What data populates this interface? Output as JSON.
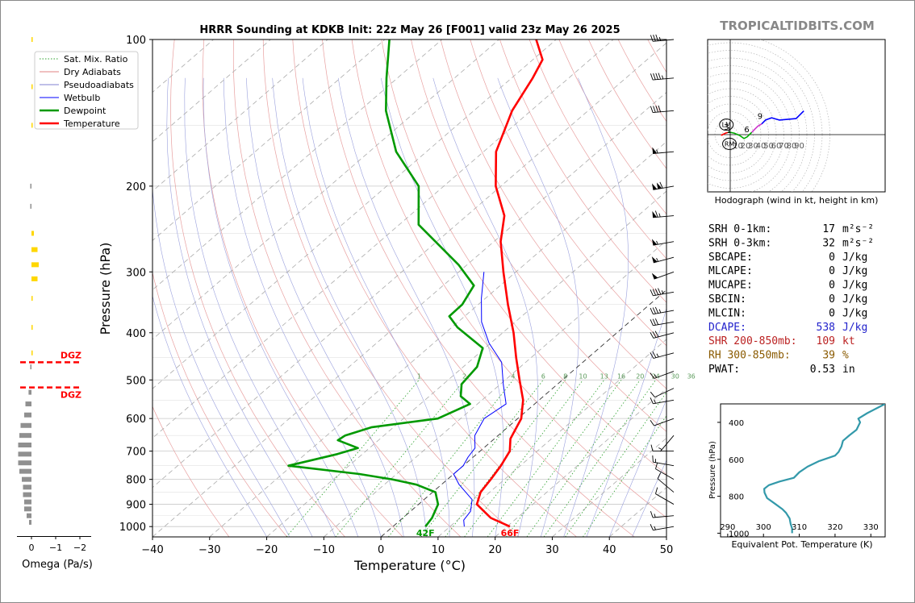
{
  "chart_data": {
    "type": "line",
    "title": "HRRR Sounding at KDKB Init: 22z May 26 [F001] valid 23z May 26 2025",
    "xlabel": "Temperature (°C)",
    "ylabel": "Pressure (hPa)",
    "x_ticks": [
      "−40",
      "−30",
      "−20",
      "−10",
      "0",
      "10",
      "20",
      "30",
      "40",
      "50"
    ],
    "y_ticks": [
      "100",
      "200",
      "300",
      "400",
      "500",
      "600",
      "700",
      "800",
      "900",
      "1000"
    ],
    "xlim": [
      -40,
      50
    ],
    "ylim": [
      1050,
      100
    ],
    "log_y": true,
    "legend": {
      "position": "top-left",
      "entries": [
        {
          "label": "Sat. Mix. Ratio",
          "color": "#2ca02c",
          "style": "dotted"
        },
        {
          "label": "Dry Adiabats",
          "color": "#e08080",
          "style": "solid"
        },
        {
          "label": "Pseudoadiabats",
          "color": "#8080d0",
          "style": "solid"
        },
        {
          "label": "Wetbulb",
          "color": "#0000ff",
          "style": "solid"
        },
        {
          "label": "Dewpoint",
          "color": "#009900",
          "style": "solid"
        },
        {
          "label": "Temperature",
          "color": "#ff0000",
          "style": "solid"
        }
      ]
    },
    "series": [
      {
        "name": "Temperature",
        "color": "#ff0000",
        "points": [
          [
            1000,
            20.5
          ],
          [
            960,
            15.4
          ],
          [
            900,
            10.2
          ],
          [
            850,
            8.4
          ],
          [
            800,
            7.6
          ],
          [
            750,
            6.6
          ],
          [
            700,
            5.2
          ],
          [
            660,
            2.8
          ],
          [
            600,
            0.6
          ],
          [
            550,
            -2.8
          ],
          [
            500,
            -7.5
          ],
          [
            450,
            -12.6
          ],
          [
            400,
            -18.1
          ],
          [
            350,
            -24.8
          ],
          [
            300,
            -32.2
          ],
          [
            260,
            -38.8
          ],
          [
            230,
            -43.4
          ],
          [
            200,
            -50.9
          ],
          [
            170,
            -57.8
          ],
          [
            140,
            -63.3
          ],
          [
            120,
            -66.3
          ],
          [
            110,
            -68.3
          ],
          [
            100,
            -73.5
          ]
        ]
      },
      {
        "name": "Dewpoint",
        "color": "#009900",
        "points": [
          [
            1000,
            5.7
          ],
          [
            960,
            5.1
          ],
          [
            900,
            3.4
          ],
          [
            850,
            0.5
          ],
          [
            820,
            -4.4
          ],
          [
            800,
            -9.7
          ],
          [
            780,
            -16.5
          ],
          [
            750,
            -30.6
          ],
          [
            710,
            -24.4
          ],
          [
            690,
            -22.0
          ],
          [
            665,
            -27.1
          ],
          [
            650,
            -26.8
          ],
          [
            625,
            -23.8
          ],
          [
            600,
            -14.0
          ],
          [
            560,
            -11.3
          ],
          [
            540,
            -14.5
          ],
          [
            510,
            -16.8
          ],
          [
            470,
            -17.6
          ],
          [
            430,
            -20.4
          ],
          [
            390,
            -29.0
          ],
          [
            370,
            -32.7
          ],
          [
            350,
            -32.8
          ],
          [
            320,
            -34.6
          ],
          [
            290,
            -41.5
          ],
          [
            240,
            -56.6
          ],
          [
            200,
            -64.4
          ],
          [
            170,
            -75.3
          ],
          [
            140,
            -85.4
          ],
          [
            120,
            -91.9
          ],
          [
            100,
            -99.2
          ]
        ]
      },
      {
        "name": "Wetbulb",
        "color": "#0000ff",
        "points": [
          [
            1000,
            12.5
          ],
          [
            970,
            11.1
          ],
          [
            930,
            10.5
          ],
          [
            880,
            8.4
          ],
          [
            820,
            3.1
          ],
          [
            780,
            0.0
          ],
          [
            750,
            0.0
          ],
          [
            720,
            -0.9
          ],
          [
            690,
            -1.5
          ],
          [
            650,
            -4.1
          ],
          [
            600,
            -5.9
          ],
          [
            560,
            -5.0
          ],
          [
            510,
            -9.5
          ],
          [
            460,
            -14.2
          ],
          [
            420,
            -20.3
          ],
          [
            380,
            -25.9
          ],
          [
            340,
            -30.7
          ],
          [
            300,
            -35.6
          ]
        ]
      }
    ],
    "surface_labels": [
      {
        "text": "42F",
        "color": "#009900"
      },
      {
        "text": "66F",
        "color": "#ff0000"
      }
    ],
    "mixing_ratio_labels": [
      "1",
      "2",
      "4",
      "6",
      "8",
      "10",
      "13",
      "16",
      "20",
      "24",
      "30",
      "36"
    ]
  },
  "omega_panel": {
    "xlabel": "Omega (Pa/s)",
    "x_ticks": [
      "0",
      "−1",
      "−2"
    ],
    "dgz_label": "DGZ",
    "dgz_color": "#ff0000",
    "dgz_bounds_hpa": [
      460,
      518
    ],
    "values": [
      {
        "p": 100,
        "w": -0.05,
        "c": "#ffd700"
      },
      {
        "p": 125,
        "w": -0.05,
        "c": "#ffd700"
      },
      {
        "p": 150,
        "w": -0.05,
        "c": "#ffd700"
      },
      {
        "p": 200,
        "w": 0.05,
        "c": "#909090"
      },
      {
        "p": 220,
        "w": 0.05,
        "c": "#909090"
      },
      {
        "p": 250,
        "w": -0.1,
        "c": "#ffd700"
      },
      {
        "p": 270,
        "w": -0.25,
        "c": "#ffd700"
      },
      {
        "p": 290,
        "w": -0.3,
        "c": "#ffd700"
      },
      {
        "p": 310,
        "w": -0.25,
        "c": "#ffd700"
      },
      {
        "p": 340,
        "w": -0.05,
        "c": "#ffd700"
      },
      {
        "p": 390,
        "w": -0.05,
        "c": "#ffd700"
      },
      {
        "p": 440,
        "w": -0.05,
        "c": "#ffd700"
      },
      {
        "p": 470,
        "w": 0.05,
        "c": "#909090"
      },
      {
        "p": 530,
        "w": 0.12,
        "c": "#909090"
      },
      {
        "p": 560,
        "w": 0.25,
        "c": "#909090"
      },
      {
        "p": 590,
        "w": 0.3,
        "c": "#909090"
      },
      {
        "p": 620,
        "w": 0.45,
        "c": "#909090"
      },
      {
        "p": 650,
        "w": 0.5,
        "c": "#909090"
      },
      {
        "p": 680,
        "w": 0.55,
        "c": "#909090"
      },
      {
        "p": 710,
        "w": 0.55,
        "c": "#909090"
      },
      {
        "p": 740,
        "w": 0.55,
        "c": "#909090"
      },
      {
        "p": 770,
        "w": 0.5,
        "c": "#909090"
      },
      {
        "p": 800,
        "w": 0.4,
        "c": "#909090"
      },
      {
        "p": 830,
        "w": 0.35,
        "c": "#909090"
      },
      {
        "p": 860,
        "w": 0.35,
        "c": "#909090"
      },
      {
        "p": 890,
        "w": 0.3,
        "c": "#909090"
      },
      {
        "p": 920,
        "w": 0.3,
        "c": "#909090"
      },
      {
        "p": 950,
        "w": 0.2,
        "c": "#909090"
      },
      {
        "p": 980,
        "w": 0.1,
        "c": "#909090"
      }
    ]
  },
  "wind_barbs": [
    {
      "p": 100,
      "spd": 35,
      "dir": 265
    },
    {
      "p": 120,
      "spd": 45,
      "dir": 265
    },
    {
      "p": 140,
      "spd": 40,
      "dir": 265
    },
    {
      "p": 170,
      "spd": 55,
      "dir": 265
    },
    {
      "p": 200,
      "spd": 110,
      "dir": 260
    },
    {
      "p": 230,
      "spd": 65,
      "dir": 265
    },
    {
      "p": 260,
      "spd": 55,
      "dir": 260
    },
    {
      "p": 280,
      "spd": 55,
      "dir": 255
    },
    {
      "p": 300,
      "spd": 50,
      "dir": 250
    },
    {
      "p": 330,
      "spd": 45,
      "dir": 260
    },
    {
      "p": 360,
      "spd": 35,
      "dir": 260
    },
    {
      "p": 380,
      "spd": 30,
      "dir": 260
    },
    {
      "p": 400,
      "spd": 30,
      "dir": 255
    },
    {
      "p": 440,
      "spd": 25,
      "dir": 255
    },
    {
      "p": 480,
      "spd": 15,
      "dir": 250
    },
    {
      "p": 520,
      "spd": 10,
      "dir": 245
    },
    {
      "p": 550,
      "spd": 15,
      "dir": 260
    },
    {
      "p": 600,
      "spd": 10,
      "dir": 250
    },
    {
      "p": 650,
      "spd": 5,
      "dir": 220
    },
    {
      "p": 700,
      "spd": 10,
      "dir": 270
    },
    {
      "p": 750,
      "spd": 15,
      "dir": 280
    },
    {
      "p": 800,
      "spd": 10,
      "dir": 300
    },
    {
      "p": 850,
      "spd": 10,
      "dir": 310
    },
    {
      "p": 900,
      "spd": 10,
      "dir": 300
    },
    {
      "p": 950,
      "spd": 15,
      "dir": 265
    },
    {
      "p": 1000,
      "spd": 15,
      "dir": 260
    }
  ],
  "brand": "TROPICALTIDBITS.COM",
  "hodograph": {
    "caption": "Hodograph (wind in kt, height in km)",
    "ring_labels": [
      "10",
      "20",
      "30",
      "40",
      "50",
      "60",
      "70",
      "80",
      "90"
    ],
    "height_labels": [
      "1",
      "3",
      "6",
      "9"
    ],
    "lm_label": "LM",
    "rm_label": "RM",
    "lm": [
      -5,
      13
    ],
    "rm": [
      -1,
      -12
    ],
    "segments": [
      {
        "color": "#ff0000",
        "pts": [
          [
            -12,
            -1
          ],
          [
            -10,
            0
          ],
          [
            -6,
            2
          ],
          [
            -3,
            3
          ]
        ]
      },
      {
        "color": "#00aa00",
        "pts": [
          [
            -3,
            3
          ],
          [
            0,
            3
          ],
          [
            5,
            2
          ],
          [
            12,
            -1
          ],
          [
            18,
            -5
          ],
          [
            22,
            -3
          ],
          [
            25,
            0
          ],
          [
            28,
            3
          ]
        ]
      },
      {
        "color": "#cc33cc",
        "pts": [
          [
            28,
            3
          ],
          [
            30,
            5
          ],
          [
            32,
            7
          ],
          [
            36,
            11
          ],
          [
            41,
            14
          ]
        ]
      },
      {
        "color": "#0000ff",
        "pts": [
          [
            41,
            14
          ],
          [
            46,
            19
          ],
          [
            54,
            22
          ],
          [
            64,
            19
          ],
          [
            86,
            21
          ],
          [
            96,
            31
          ]
        ]
      }
    ]
  },
  "params": [
    {
      "label": "SRH 0-1km:",
      "value": "17",
      "unit": "m²s⁻²",
      "color": "#000000"
    },
    {
      "label": "SRH 0-3km:",
      "value": "32",
      "unit": "m²s⁻²",
      "color": "#000000"
    },
    {
      "label": "SBCAPE:",
      "value": "0",
      "unit": "J/kg",
      "color": "#000000"
    },
    {
      "label": "MLCAPE:",
      "value": "0",
      "unit": "J/kg",
      "color": "#000000"
    },
    {
      "label": "MUCAPE:",
      "value": "0",
      "unit": "J/kg",
      "color": "#000000"
    },
    {
      "label": "SBCIN:",
      "value": "0",
      "unit": "J/kg",
      "color": "#000000"
    },
    {
      "label": "MLCIN:",
      "value": "0",
      "unit": "J/kg",
      "color": "#000000"
    },
    {
      "label": "DCAPE:",
      "value": "538",
      "unit": "J/kg",
      "color": "#2222cc"
    },
    {
      "label": "SHR 200-850mb:",
      "value": "109",
      "unit": "kt",
      "color": "#bb2222"
    },
    {
      "label": "RH 300-850mb:",
      "value": "39",
      "unit": "%",
      "color": "#8a5a00"
    },
    {
      "label": "PWAT:",
      "value": "0.53",
      "unit": "in",
      "color": "#000000"
    }
  ],
  "theta_e": {
    "xlabel": "Equivalent Pot. Temperature (K)",
    "ylabel": "Pressure (hPa)",
    "x_ticks": [
      "290",
      "300",
      "310",
      "320",
      "330"
    ],
    "y_ticks": [
      "400",
      "600",
      "800",
      "1000"
    ],
    "xlim": [
      288,
      334
    ],
    "ylim": [
      1020,
      300
    ],
    "color": "#3399aa",
    "points": [
      [
        1000,
        308
      ],
      [
        975,
        308
      ],
      [
        950,
        307.6
      ],
      [
        920,
        307.3
      ],
      [
        890,
        306.3
      ],
      [
        870,
        305.3
      ],
      [
        840,
        303.2
      ],
      [
        810,
        301
      ],
      [
        780,
        300.3
      ],
      [
        760,
        300.2
      ],
      [
        740,
        301.5
      ],
      [
        720,
        304.5
      ],
      [
        700,
        308.5
      ],
      [
        670,
        310
      ],
      [
        640,
        312.3
      ],
      [
        610,
        315.5
      ],
      [
        580,
        320
      ],
      [
        560,
        321
      ],
      [
        530,
        321.8
      ],
      [
        500,
        322.2
      ],
      [
        470,
        324
      ],
      [
        440,
        326
      ],
      [
        400,
        327
      ],
      [
        380,
        326.5
      ],
      [
        350,
        329
      ],
      [
        320,
        332
      ],
      [
        300,
        334
      ]
    ]
  }
}
